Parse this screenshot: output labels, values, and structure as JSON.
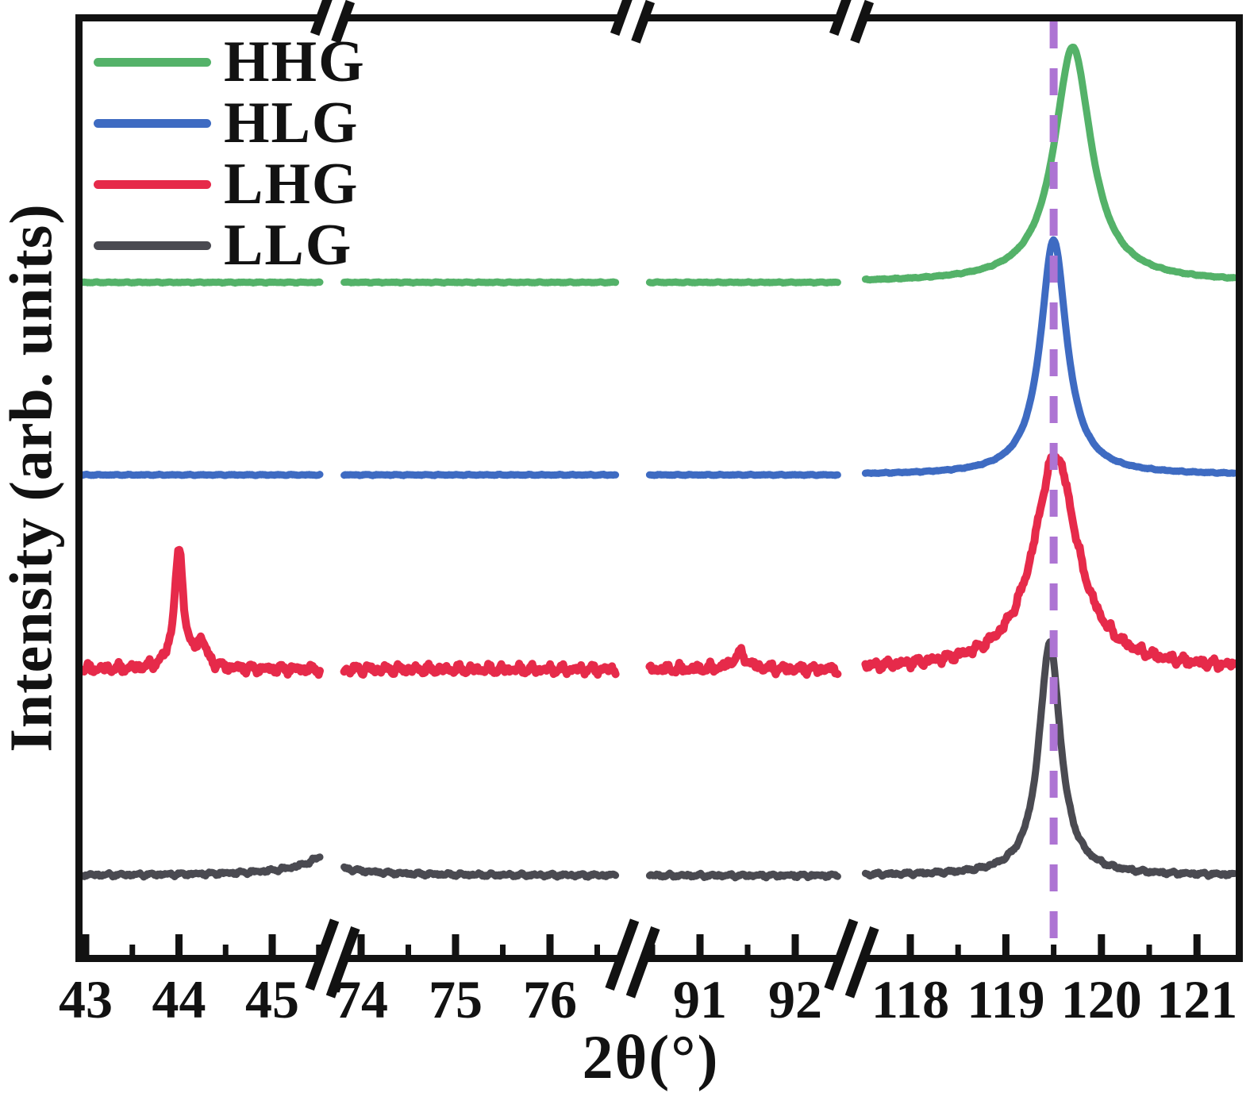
{
  "chart_data": {
    "type": "line",
    "title": "",
    "xlabel": "2θ(°)",
    "ylabel": "Intensity (arb. units)",
    "y_axis": {
      "ticks": "none",
      "scale": "arbitrary units, curves vertically offset"
    },
    "x_segments": [
      {
        "range": [
          42.97,
          45.52
        ],
        "major_ticks": [
          43,
          44,
          45
        ],
        "minor_ticks": [
          43.5,
          44.5,
          45.5
        ]
      },
      {
        "range": [
          73.82,
          76.7
        ],
        "major_ticks": [
          74,
          75,
          76
        ],
        "minor_ticks": [
          74.5,
          75.5,
          76.5
        ]
      },
      {
        "range": [
          90.47,
          92.45
        ],
        "major_ticks": [
          91,
          92
        ],
        "minor_ticks": [
          90.5,
          91.5
        ]
      },
      {
        "range": [
          117.53,
          121.4
        ],
        "major_ticks": [
          118,
          119,
          120,
          121
        ],
        "minor_ticks": [
          118.5,
          119.5,
          120.5
        ]
      }
    ],
    "axis_breaks_between": [
      [
        45.5,
        74
      ],
      [
        76.7,
        90.5
      ],
      [
        92.4,
        117.6
      ]
    ],
    "reference_line": {
      "x": 119.5,
      "style": "dashed",
      "color": "#ad74d3"
    },
    "legend": {
      "position": "top-left",
      "entries": [
        "HHG",
        "HLG",
        "LHG",
        "LLG"
      ]
    },
    "series": [
      {
        "name": "HHG",
        "color": "#54b269",
        "baseline": 3.05,
        "noise": 0.003,
        "peaks": [
          {
            "center": 119.7,
            "height": 1.21,
            "fwhm": 0.47
          }
        ]
      },
      {
        "name": "HLG",
        "color": "#3e6bc2",
        "baseline": 2.06,
        "noise": 0.003,
        "peaks": [
          {
            "center": 119.5,
            "height": 1.21,
            "fwhm": 0.33
          }
        ]
      },
      {
        "name": "LHG",
        "color": "#e62a4a",
        "baseline": 1.06,
        "noise": 0.026,
        "peaks": [
          {
            "center": 119.52,
            "height": 1.1,
            "fwhm": 0.55
          },
          {
            "center": 44.0,
            "height": 0.6,
            "fwhm": 0.12
          },
          {
            "center": 44.24,
            "height": 0.13,
            "fwhm": 0.12
          },
          {
            "center": 91.42,
            "height": 0.08,
            "fwhm": 0.18
          }
        ]
      },
      {
        "name": "LLG",
        "color": "#4a4a51",
        "baseline": 0.0,
        "noise": 0.01,
        "peaks": [
          {
            "center": 119.46,
            "height": 1.2,
            "fwhm": 0.27
          },
          {
            "center": 45.95,
            "height": 0.35,
            "fwhm": 0.55
          },
          {
            "center": 73.3,
            "height": 0.1,
            "fwhm": 0.8
          }
        ]
      }
    ]
  }
}
